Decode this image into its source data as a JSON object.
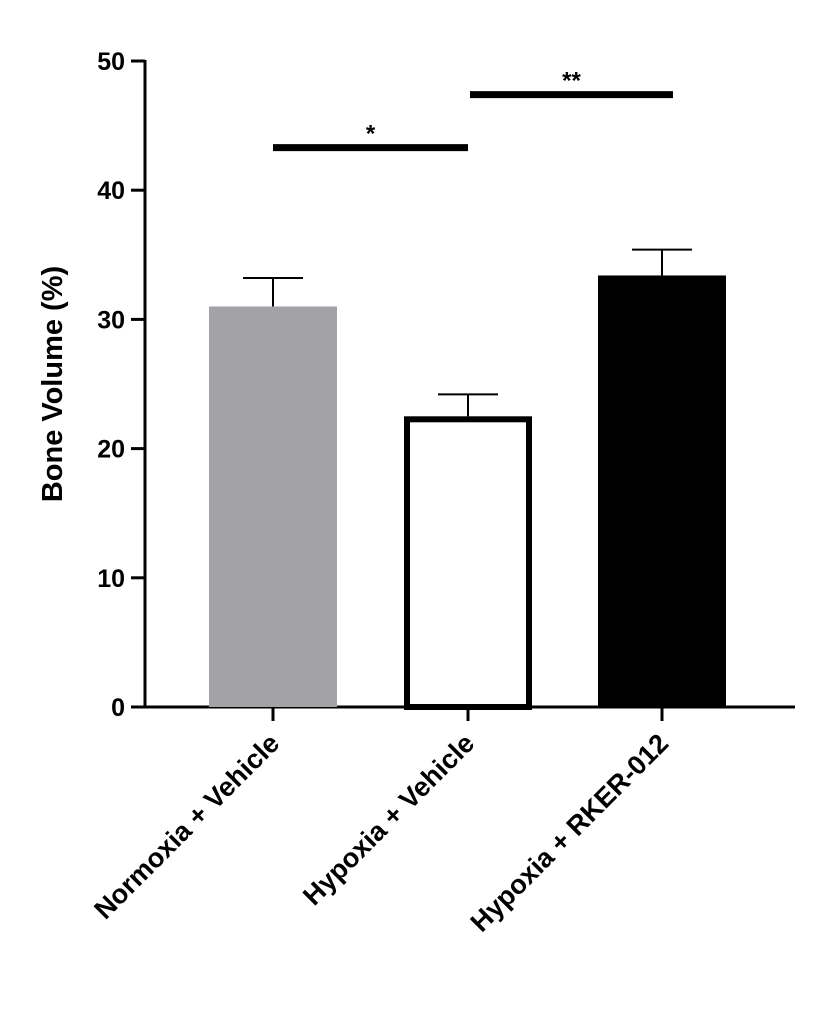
{
  "chart_data": {
    "type": "bar",
    "title": "",
    "xlabel": "",
    "ylabel": "Bone Volume (%)",
    "ylim": [
      0,
      50
    ],
    "yticks": [
      0,
      10,
      20,
      30,
      40,
      50
    ],
    "grid": false,
    "categories": [
      "Normoxia + Vehicle",
      "Hypoxia + Vehicle",
      "Hypoxia + RKER-012"
    ],
    "values": [
      31.0,
      22.5,
      33.4
    ],
    "error_upper": [
      33.2,
      24.2,
      35.4
    ],
    "fills": [
      "#a3a2a6",
      "#ffffff",
      "#000000"
    ],
    "significance": [
      {
        "from": 0,
        "to": 1,
        "label": "*",
        "y": 43.3
      },
      {
        "from": 1,
        "to": 2,
        "label": "**",
        "y": 47.4
      }
    ]
  }
}
